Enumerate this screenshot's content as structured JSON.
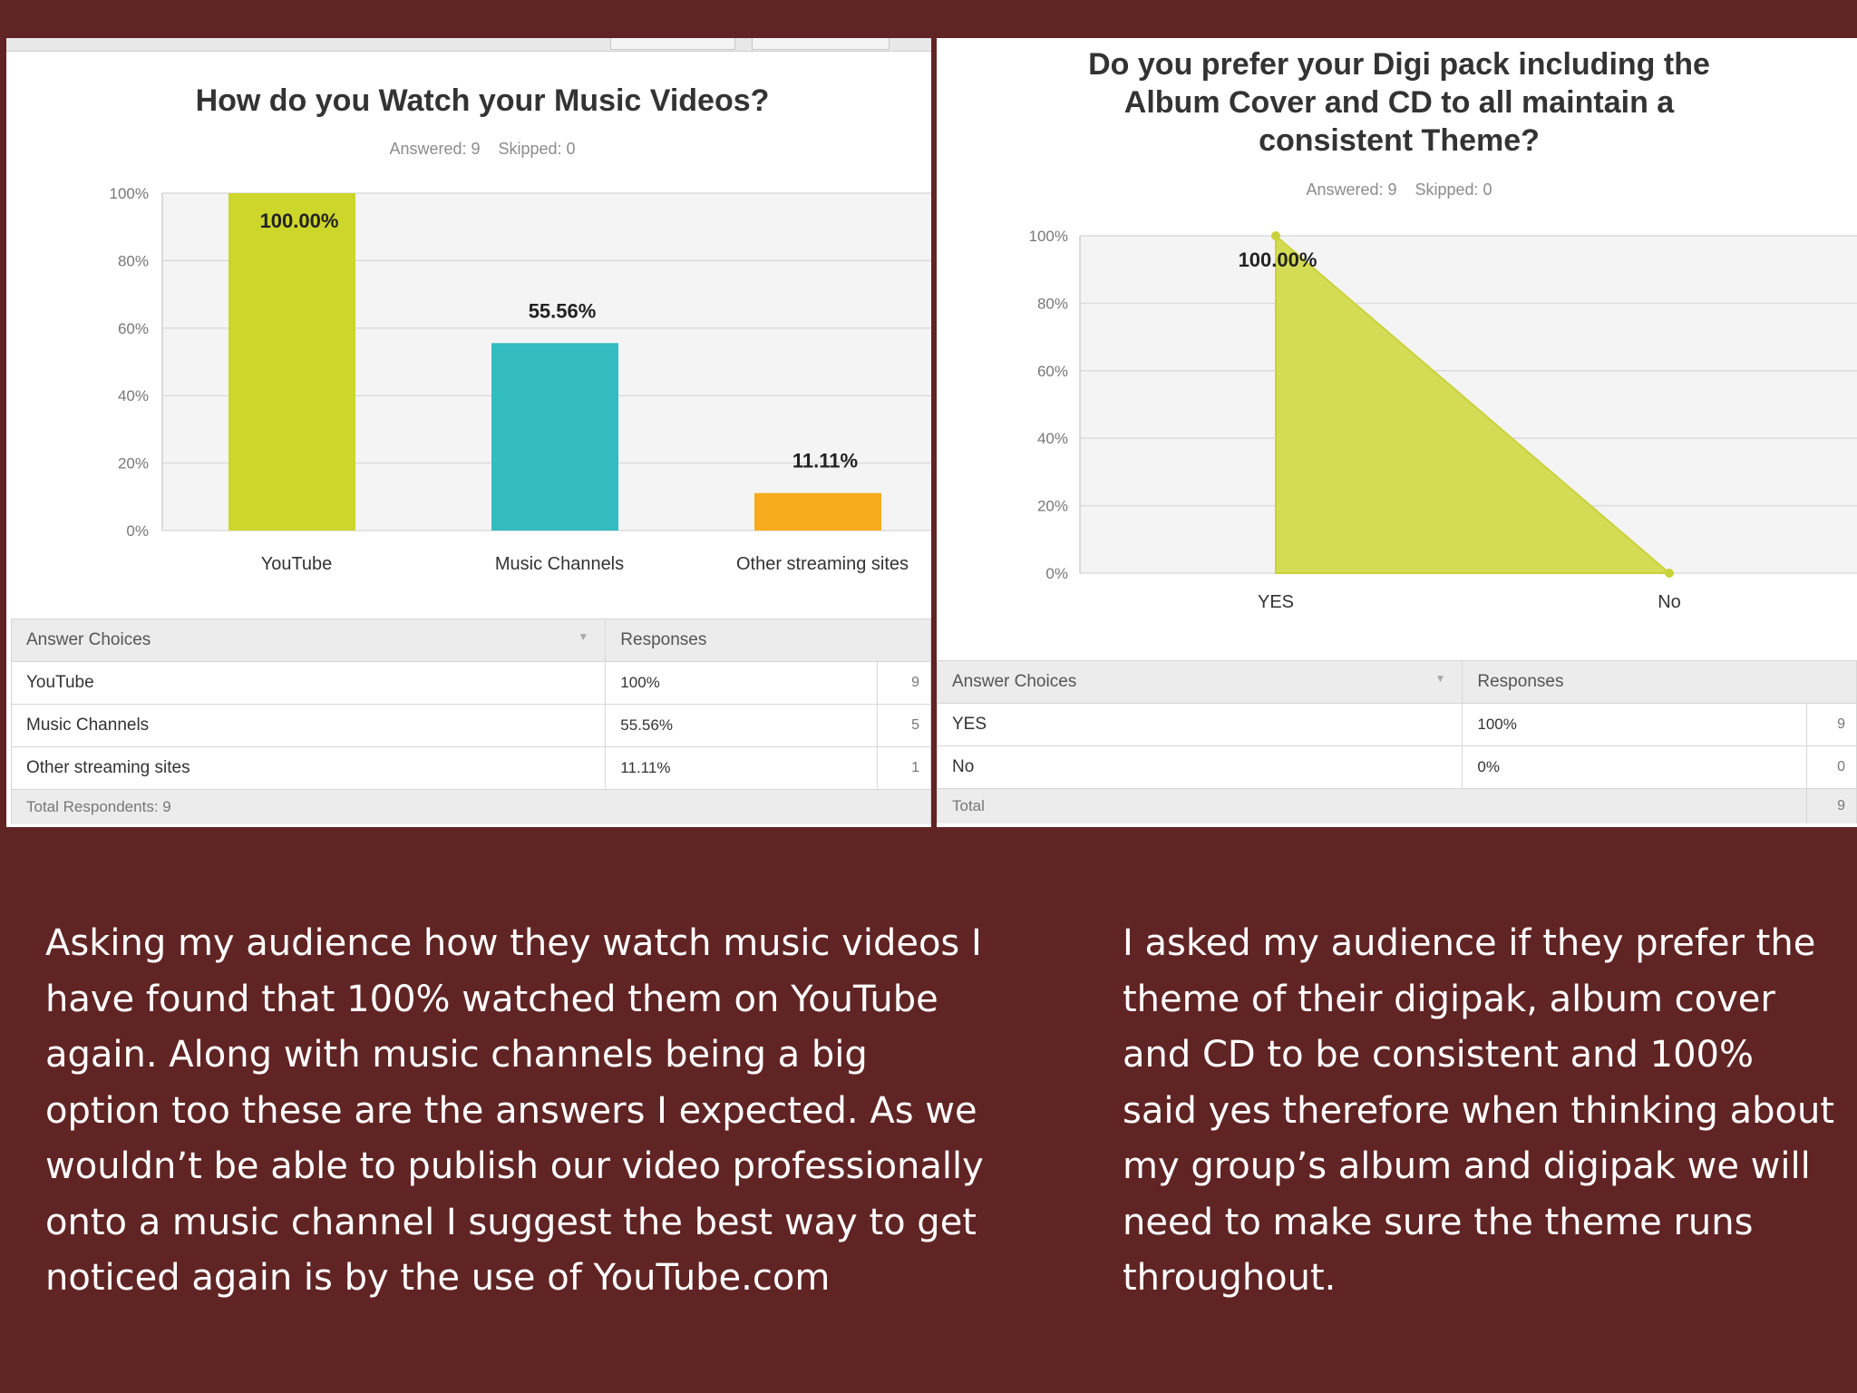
{
  "left_panel": {
    "title": "How do you Watch your Music Videos?",
    "answered": "Answered: 9",
    "skipped": "Skipped: 0",
    "table": {
      "header_choices": "Answer Choices",
      "header_responses": "Responses",
      "rows": [
        {
          "choice": "YouTube",
          "percent": "100%",
          "count": "9"
        },
        {
          "choice": "Music Channels",
          "percent": "55.56%",
          "count": "5"
        },
        {
          "choice": "Other streaming sites",
          "percent": "11.11%",
          "count": "1"
        }
      ],
      "footer": "Total Respondents: 9"
    }
  },
  "right_panel": {
    "title_lines": [
      "Do you prefer your Digi pack including the",
      "Album Cover and CD to all maintain a",
      "consistent Theme?"
    ],
    "answered": "Answered: 9",
    "skipped": "Skipped: 0",
    "table": {
      "header_choices": "Answer Choices",
      "header_responses": "Responses",
      "rows": [
        {
          "choice": "YES",
          "percent": "100%",
          "count": "9"
        },
        {
          "choice": "No",
          "percent": "0%",
          "count": "0"
        }
      ],
      "footer": "Total",
      "footer_count": "9"
    }
  },
  "captions": {
    "left": "Asking my audience how they watch music videos I have found that  100% watched them on YouTube again. Along with music channels being a big option too these are the answers I expected. As we wouldn’t be able to publish our video professionally onto a music channel I suggest the best way to get noticed again is by the use of YouTube.com",
    "right": "I asked my audience if they prefer the theme of their digipak, album cover and CD to be consistent and 100% said yes therefore when thinking about my group’s album and digipak we will need to make sure the theme runs throughout."
  },
  "colors": {
    "background": "#612424",
    "yellow_green": "#cdd62a",
    "teal": "#33bdc1",
    "orange": "#f6ac1c",
    "area_fill": "#d4dc55"
  },
  "chart_data": [
    {
      "type": "bar",
      "title": "How do you Watch your Music Videos?",
      "categories": [
        "YouTube",
        "Music Channels",
        "Other streaming sites"
      ],
      "values": [
        100.0,
        55.56,
        11.11
      ],
      "data_labels": [
        "100.00%",
        "55.56%",
        "11.11%"
      ],
      "colors": [
        "#cdd62a",
        "#33bdc1",
        "#f6ac1c"
      ],
      "ylim": [
        0,
        100
      ],
      "yticks": [
        "0%",
        "20%",
        "40%",
        "60%",
        "80%",
        "100%"
      ],
      "grid": true
    },
    {
      "type": "area",
      "title": "Do you prefer your Digi pack including the Album Cover and CD to all maintain a consistent Theme?",
      "categories": [
        "YES",
        "No"
      ],
      "values": [
        100.0,
        0.0
      ],
      "data_labels": [
        "100.00%"
      ],
      "ylim": [
        0,
        100
      ],
      "yticks": [
        "0%",
        "20%",
        "40%",
        "60%",
        "80%",
        "100%"
      ],
      "grid": true
    }
  ]
}
